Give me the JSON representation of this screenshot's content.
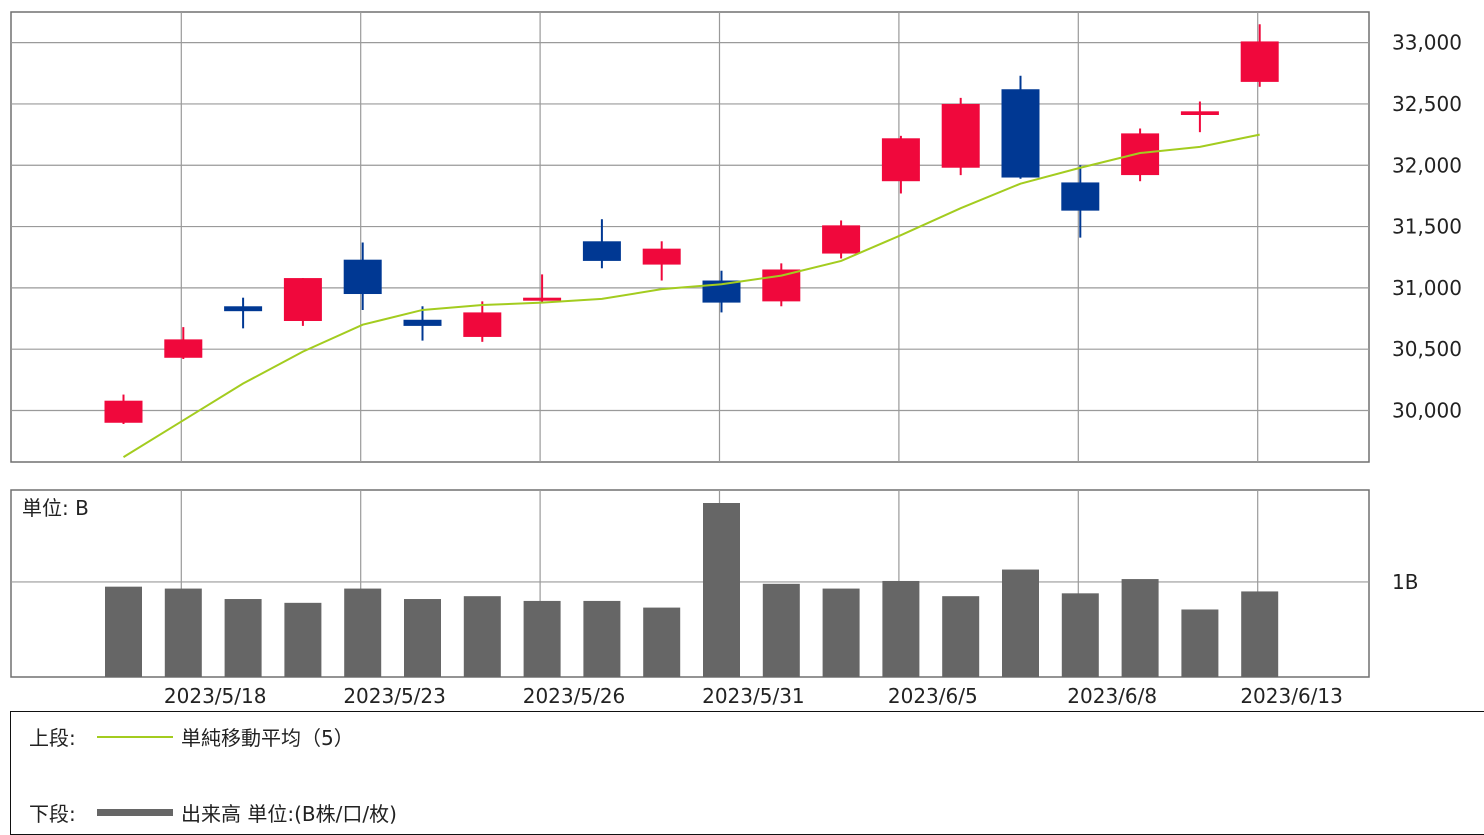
{
  "colors": {
    "up": "#f0083c",
    "down": "#003893",
    "ma": "#a3cc1f",
    "volume": "#666666",
    "grid": "#9a9a9a",
    "frame": "#707070"
  },
  "chart_data": {
    "type": "candlestick",
    "upper": {
      "y_ticks": [
        30000,
        30500,
        31000,
        31500,
        32000,
        32500,
        33000
      ],
      "y_tick_labels": [
        "30,000",
        "30,500",
        "31,000",
        "31,500",
        "32,000",
        "32,500",
        "33,000"
      ],
      "ylim": [
        29580,
        33250
      ],
      "candles": [
        {
          "o": 29900,
          "h": 30130,
          "l": 29890,
          "c": 30080
        },
        {
          "o": 30430,
          "h": 30680,
          "l": 30420,
          "c": 30580
        },
        {
          "o": 30850,
          "h": 30920,
          "l": 30670,
          "c": 30810
        },
        {
          "o": 30730,
          "h": 31080,
          "l": 30690,
          "c": 31080
        },
        {
          "o": 31230,
          "h": 31370,
          "l": 30820,
          "c": 30950
        },
        {
          "o": 30740,
          "h": 30850,
          "l": 30570,
          "c": 30690
        },
        {
          "o": 30600,
          "h": 30890,
          "l": 30560,
          "c": 30800
        },
        {
          "o": 30900,
          "h": 31110,
          "l": 30880,
          "c": 30920
        },
        {
          "o": 31380,
          "h": 31560,
          "l": 31160,
          "c": 31220
        },
        {
          "o": 31190,
          "h": 31380,
          "l": 31060,
          "c": 31320
        },
        {
          "o": 31060,
          "h": 31140,
          "l": 30800,
          "c": 30880
        },
        {
          "o": 30890,
          "h": 31200,
          "l": 30850,
          "c": 31150
        },
        {
          "o": 31280,
          "h": 31550,
          "l": 31240,
          "c": 31510
        },
        {
          "o": 31870,
          "h": 32240,
          "l": 31770,
          "c": 32220
        },
        {
          "o": 31980,
          "h": 32550,
          "l": 31920,
          "c": 32500
        },
        {
          "o": 32620,
          "h": 32730,
          "l": 31890,
          "c": 31900
        },
        {
          "o": 31860,
          "h": 32000,
          "l": 31410,
          "c": 31630
        },
        {
          "o": 31920,
          "h": 32300,
          "l": 31870,
          "c": 32260
        },
        {
          "o": 32410,
          "h": 32520,
          "l": 32270,
          "c": 32440
        },
        {
          "o": 32680,
          "h": 33150,
          "l": 32640,
          "c": 33010
        }
      ],
      "sma5": [
        29620,
        29920,
        30220,
        30480,
        30700,
        30820,
        30860,
        30880,
        30910,
        30990,
        31030,
        31100,
        31220,
        31430,
        31650,
        31850,
        31980,
        32100,
        32150,
        32250
      ]
    },
    "lower": {
      "unit_label": "単位: B",
      "y_tick_label": "1B",
      "y_tick_value": 1.0,
      "ylim": [
        0,
        1.83
      ],
      "volumes": [
        0.95,
        0.93,
        0.82,
        0.78,
        0.93,
        0.82,
        0.85,
        0.8,
        0.8,
        0.73,
        1.83,
        0.98,
        0.93,
        1.01,
        0.85,
        1.13,
        0.88,
        1.03,
        0.71,
        0.9
      ]
    },
    "x_grid_after_index": [
      1,
      4,
      7,
      10,
      13,
      16,
      19
    ],
    "x_labels": [
      {
        "i": 2,
        "text": "2023/5/18"
      },
      {
        "i": 5,
        "text": "2023/5/23"
      },
      {
        "i": 8,
        "text": "2023/5/26"
      },
      {
        "i": 11,
        "text": "2023/5/31"
      },
      {
        "i": 14,
        "text": "2023/6/5"
      },
      {
        "i": 17,
        "text": "2023/6/8"
      },
      {
        "i": 20,
        "text": "2023/6/13"
      }
    ]
  },
  "legend": {
    "upper_prefix": "上段:",
    "upper_label": "単純移動平均（5）",
    "lower_prefix": "下段:",
    "lower_label": "出来高 単位:(B株/口/枚)"
  }
}
